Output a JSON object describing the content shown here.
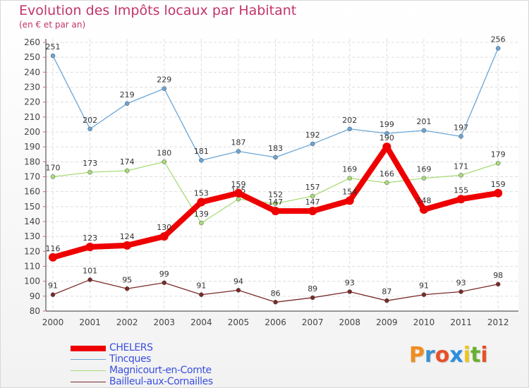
{
  "chart_data": {
    "type": "line",
    "title": "Evolution des Impôts locaux par Habitant",
    "subtitle": "(en € et par an)",
    "categories": [
      "2000",
      "2001",
      "2002",
      "2003",
      "2004",
      "2005",
      "2006",
      "2007",
      "2008",
      "2009",
      "2010",
      "2011",
      "2012"
    ],
    "ylim": [
      80,
      260
    ],
    "yticks": [
      80,
      90,
      100,
      110,
      120,
      130,
      140,
      150,
      160,
      170,
      180,
      190,
      200,
      210,
      220,
      230,
      240,
      250,
      260
    ],
    "series": [
      {
        "name": "Tincques",
        "color": "#6aa6d6",
        "values": [
          251,
          202,
          219,
          229,
          181,
          187,
          183,
          192,
          202,
          199,
          201,
          197,
          256
        ]
      },
      {
        "name": "Magnicourt-en-Comte",
        "color": "#a8dc78",
        "values": [
          170,
          173,
          174,
          180,
          139,
          155,
          152,
          157,
          169,
          166,
          169,
          171,
          179
        ]
      },
      {
        "name": "Bailleul-aux-Cornailles",
        "color": "#7b2a2a",
        "values": [
          91,
          101,
          95,
          99,
          91,
          94,
          86,
          89,
          93,
          87,
          91,
          93,
          98
        ]
      },
      {
        "name": "CHELERS",
        "color": "#ee0000",
        "values": [
          116,
          123,
          124,
          130,
          153,
          159,
          147,
          147,
          154,
          190,
          148,
          155,
          159
        ]
      }
    ],
    "legend": [
      "CHELERS",
      "Tincques",
      "Magnicourt-en-Comte",
      "Bailleul-aux-Cornailles"
    ]
  },
  "brand": {
    "letters": [
      "P",
      "r",
      "o",
      "x",
      "i",
      "t",
      "i"
    ],
    "colors": [
      "#f08c1e",
      "#3c8fd0",
      "#e8502a",
      "#2a8ee0",
      "#f0c419",
      "#69b030",
      "#e8502a"
    ]
  }
}
